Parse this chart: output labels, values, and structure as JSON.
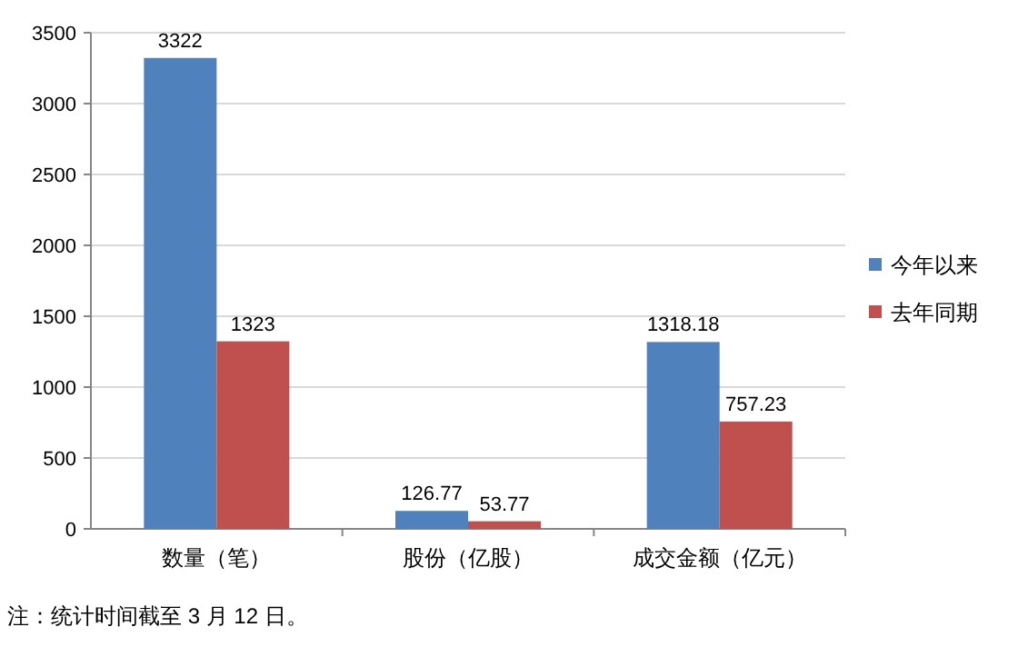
{
  "chart_data": {
    "type": "bar",
    "categories": [
      "数量（笔）",
      "股份（亿股）",
      "成交金额（亿元）"
    ],
    "series": [
      {
        "name": "今年以来",
        "color": "#4f81bd",
        "values": [
          3322,
          126.77,
          1318.18
        ]
      },
      {
        "name": "去年同期",
        "color": "#c0504d",
        "values": [
          1323,
          53.77,
          757.23
        ]
      }
    ],
    "ylim": [
      0,
      3500
    ],
    "yticks": [
      0,
      500,
      1000,
      1500,
      2000,
      2500,
      3000,
      3500
    ],
    "grid": "y",
    "legend": "right",
    "data_labels": true,
    "annotations": [
      "注：统计时间截至 3 月 12 日。"
    ]
  }
}
